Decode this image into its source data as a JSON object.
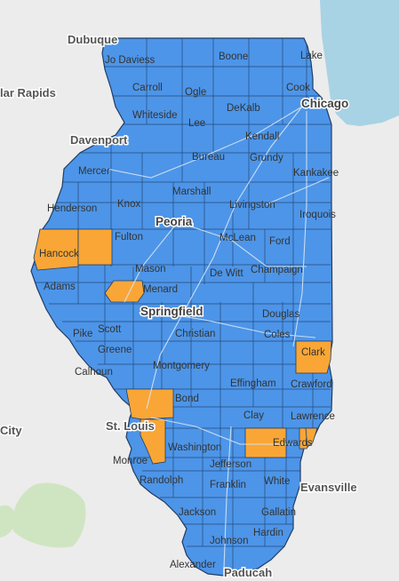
{
  "colors": {
    "background": "#ececec",
    "lake": "#a8d3e4",
    "county_default": "#4d95e8",
    "county_highlight": "#f9a636",
    "county_border": "#1f3d66",
    "road": "#d6e5f5",
    "green_area": "#cfe5c2"
  },
  "neighbor_labels": {
    "dubuque": "Dubuque",
    "rapids": "lar Rapids",
    "davenport": "Davenport",
    "stlouis": "St. Louis",
    "city": "City",
    "evansville": "Evansville",
    "paducah": "Paducah"
  },
  "major_city_labels": {
    "chicago": "Chicago",
    "peoria": "Peoria",
    "springfield": "Springfield"
  },
  "county_labels": {
    "jodaviess": "Jo Daviess",
    "boone": "Boone",
    "lake": "Lake",
    "carroll": "Carroll",
    "ogle": "Ogle",
    "cook": "Cook",
    "whiteside": "Whiteside",
    "lee": "Lee",
    "dekalb": "DeKalb",
    "kendall": "Kendall",
    "bureau": "Bureau",
    "grundy": "Grundy",
    "mercer": "Mercer",
    "kankakee": "Kankakee",
    "marshall": "Marshall",
    "henderson": "Henderson",
    "knox": "Knox",
    "livingston": "Livingston",
    "iroquois": "Iroquois",
    "fulton": "Fulton",
    "mclean": "McLean",
    "ford": "Ford",
    "hancock": "Hancock",
    "mason": "Mason",
    "dewitt": "De Witt",
    "champaign": "Champaign",
    "adams": "Adams",
    "menard": "Menard",
    "douglas": "Douglas",
    "scott": "Scott",
    "pike": "Pike",
    "christian": "Christian",
    "coles": "Coles",
    "greene": "Greene",
    "clark": "Clark",
    "calhoun": "Calhoun",
    "montgomery": "Montgomery",
    "effingham": "Effingham",
    "crawford": "Crawford",
    "bond": "Bond",
    "clay": "Clay",
    "lawrence": "Lawrence",
    "edwards": "Edwards",
    "monroe": "Monroe",
    "washington": "Washington",
    "jefferson": "Jefferson",
    "randolph": "Randolph",
    "franklin": "Franklin",
    "white": "White",
    "jackson": "Jackson",
    "gallatin": "Gallatin",
    "johnson": "Johnson",
    "hardin": "Hardin",
    "alexander": "Alexander"
  },
  "highlighted_counties": [
    "Hancock",
    "McDonough",
    "Menard",
    "Clark",
    "Madison",
    "St. Clair",
    "Edwards",
    "Wabash",
    "Wayne"
  ]
}
